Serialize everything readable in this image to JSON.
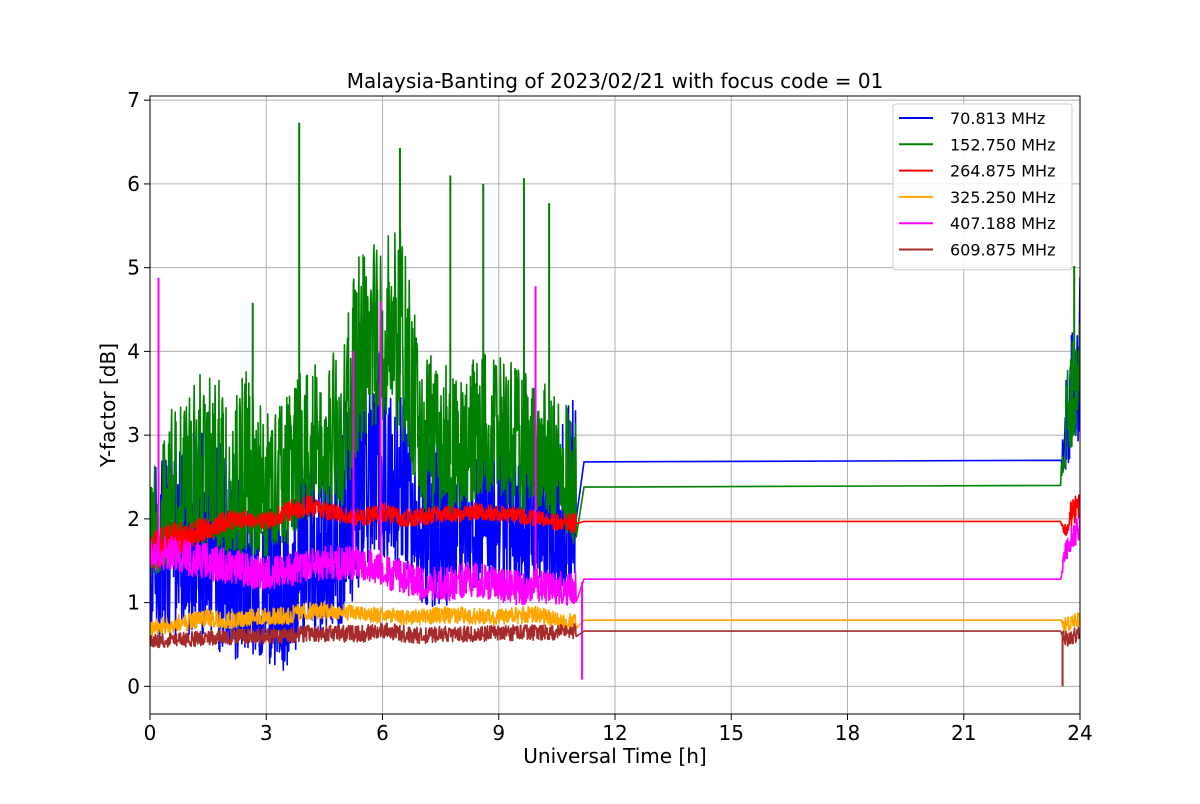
{
  "chart_data": {
    "type": "line",
    "title": "Malaysia-Banting of 2023/02/21 with focus code = 01",
    "xlabel": "Universal Time [h]",
    "ylabel": "Y-factor [dB]",
    "xlim": [
      0,
      24
    ],
    "ylim": [
      -0.33,
      7.05
    ],
    "xticks": [
      0,
      3,
      6,
      9,
      12,
      15,
      18,
      21,
      24
    ],
    "yticks": [
      0,
      1,
      2,
      3,
      4,
      5,
      6,
      7
    ],
    "grid": true,
    "legend_position": "top-right",
    "series": [
      {
        "name": " 70.813 MHz",
        "color": "#0000ff",
        "x": [
          0,
          0.5,
          1,
          1.5,
          2,
          2.5,
          3,
          3.5,
          4,
          4.5,
          5,
          5.5,
          6,
          6.5,
          7,
          7.5,
          8,
          8.5,
          9,
          9.5,
          10,
          10.5,
          11,
          11.2,
          23.5,
          23.6,
          23.8,
          24
        ],
        "y": [
          1.5,
          1.6,
          1.2,
          1.8,
          1.0,
          1.2,
          1.0,
          0.8,
          1.3,
          1.4,
          1.6,
          2.6,
          2.9,
          2.4,
          1.7,
          1.6,
          1.8,
          1.9,
          1.9,
          1.7,
          1.8,
          1.6,
          1.7,
          2.68,
          2.7,
          2.7,
          3.3,
          3.6
        ],
        "envelope_low": [
          0.4,
          0.3,
          0.5,
          0.4,
          0.2,
          0.3,
          0.2,
          0.05,
          0.6,
          0.5,
          0.6,
          1.2,
          1.4,
          1.2,
          0.9,
          0.8,
          1.0,
          1.1,
          1.1,
          1.0,
          1.1,
          1.0,
          1.1,
          2.68,
          2.7,
          2.4,
          2.6,
          2.8
        ],
        "envelope_high": [
          2.5,
          2.9,
          3.0,
          3.5,
          2.6,
          2.7,
          2.3,
          2.2,
          2.9,
          3.0,
          3.4,
          3.9,
          4.0,
          3.6,
          2.8,
          3.2,
          2.9,
          3.1,
          3.0,
          2.8,
          3.0,
          2.9,
          3.8,
          2.68,
          2.7,
          3.6,
          4.3,
          4.9
        ]
      },
      {
        "name": "152.750 MHz",
        "color": "#008000",
        "x": [
          0,
          0.5,
          1,
          1.5,
          2,
          2.5,
          3,
          3.5,
          4,
          4.5,
          5,
          5.5,
          6,
          6.5,
          7,
          7.5,
          8,
          8.5,
          9,
          9.5,
          10,
          10.5,
          11,
          11.2,
          23.5,
          23.6,
          23.8,
          24
        ],
        "y": [
          1.6,
          2.1,
          2.2,
          2.3,
          2.0,
          1.9,
          2.0,
          2.2,
          2.6,
          2.5,
          2.8,
          3.7,
          4.0,
          3.7,
          2.8,
          2.6,
          2.7,
          2.9,
          2.9,
          2.6,
          2.6,
          2.5,
          2.2,
          2.38,
          2.4,
          2.9,
          3.4,
          3.9
        ],
        "envelope_low": [
          1.2,
          1.4,
          1.5,
          1.6,
          1.5,
          1.4,
          1.5,
          1.6,
          1.9,
          1.9,
          2.1,
          2.9,
          3.1,
          2.9,
          2.0,
          1.9,
          2.0,
          2.2,
          2.2,
          2.0,
          2.0,
          1.9,
          1.6,
          2.38,
          2.4,
          2.5,
          2.8,
          3.2
        ],
        "envelope_high": [
          2.5,
          3.3,
          3.5,
          4.0,
          3.4,
          3.8,
          3.3,
          3.5,
          4.0,
          3.9,
          4.1,
          5.6,
          5.4,
          5.5,
          4.0,
          3.9,
          3.7,
          4.0,
          4.0,
          3.8,
          3.7,
          3.5,
          3.3,
          2.38,
          2.4,
          3.6,
          4.4,
          5.0
        ],
        "spikes": [
          {
            "x": 2.65,
            "y": 4.58
          },
          {
            "x": 3.85,
            "y": 6.73
          },
          {
            "x": 6.45,
            "y": 6.43
          },
          {
            "x": 7.75,
            "y": 6.1
          },
          {
            "x": 8.6,
            "y": 6.0
          },
          {
            "x": 9.65,
            "y": 6.07
          },
          {
            "x": 10.3,
            "y": 5.77
          },
          {
            "x": 23.85,
            "y": 5.02
          }
        ]
      },
      {
        "name": "264.875 MHz",
        "color": "#ff0000",
        "x": [
          0,
          0.5,
          1,
          1.5,
          2,
          2.5,
          3,
          3.5,
          4,
          4.5,
          5,
          5.5,
          6,
          6.5,
          7,
          7.5,
          8,
          8.5,
          9,
          9.5,
          10,
          10.5,
          11,
          11.2,
          23.5,
          23.6,
          23.8,
          24
        ],
        "y": [
          1.6,
          1.7,
          1.75,
          1.85,
          1.95,
          2.0,
          1.95,
          2.05,
          2.15,
          2.1,
          2.05,
          2.0,
          2.1,
          2.0,
          2.0,
          2.05,
          2.05,
          2.1,
          2.05,
          2.05,
          2.0,
          1.95,
          1.95,
          1.97,
          1.97,
          1.85,
          2.05,
          2.15
        ],
        "envelope_low": [
          1.3,
          1.5,
          1.6,
          1.75,
          1.85,
          1.88,
          1.85,
          1.95,
          2.02,
          1.98,
          1.93,
          1.9,
          1.95,
          1.9,
          1.9,
          1.95,
          1.95,
          1.98,
          1.95,
          1.93,
          1.9,
          1.85,
          1.82,
          1.97,
          1.97,
          1.75,
          1.9,
          2.0
        ],
        "envelope_high": [
          1.85,
          1.95,
          2.0,
          2.05,
          2.1,
          2.1,
          2.08,
          2.2,
          2.3,
          2.2,
          2.15,
          2.12,
          2.2,
          2.12,
          2.15,
          2.15,
          2.15,
          2.2,
          2.15,
          2.15,
          2.1,
          2.05,
          2.08,
          1.97,
          1.97,
          1.97,
          2.25,
          2.3
        ]
      },
      {
        "name": "325.250 MHz",
        "color": "#ffa500",
        "x": [
          0,
          0.5,
          1,
          1.5,
          2,
          2.5,
          3,
          3.5,
          4,
          4.5,
          5,
          5.5,
          6,
          6.5,
          7,
          7.5,
          8,
          8.5,
          9,
          9.5,
          10,
          10.5,
          11,
          11.2,
          23.5,
          23.6,
          23.8,
          24
        ],
        "y": [
          0.68,
          0.72,
          0.75,
          0.8,
          0.78,
          0.8,
          0.82,
          0.82,
          0.88,
          0.9,
          0.88,
          0.86,
          0.84,
          0.82,
          0.82,
          0.84,
          0.84,
          0.83,
          0.82,
          0.84,
          0.85,
          0.78,
          0.76,
          0.79,
          0.79,
          0.72,
          0.78,
          0.8
        ],
        "envelope_low": [
          0.56,
          0.62,
          0.65,
          0.7,
          0.68,
          0.7,
          0.72,
          0.72,
          0.78,
          0.8,
          0.78,
          0.76,
          0.74,
          0.72,
          0.72,
          0.74,
          0.74,
          0.73,
          0.72,
          0.74,
          0.75,
          0.68,
          0.66,
          0.79,
          0.79,
          0.62,
          0.68,
          0.7
        ],
        "envelope_high": [
          0.8,
          0.84,
          0.87,
          0.95,
          0.9,
          0.92,
          0.94,
          0.95,
          1.0,
          1.0,
          0.98,
          0.96,
          0.95,
          0.92,
          0.92,
          0.95,
          0.95,
          0.93,
          0.92,
          0.95,
          0.96,
          0.88,
          0.87,
          0.79,
          0.79,
          0.82,
          0.88,
          0.9
        ]
      },
      {
        "name": "407.188 MHz",
        "color": "#ff00ff",
        "x": [
          0,
          0.5,
          1,
          1.5,
          2,
          2.5,
          3,
          3.5,
          4,
          4.5,
          5,
          5.5,
          6,
          6.5,
          7,
          7.5,
          8,
          8.5,
          9,
          9.5,
          10,
          10.5,
          11,
          11.2,
          23.5,
          23.6,
          23.8,
          24
        ],
        "y": [
          1.58,
          1.55,
          1.5,
          1.45,
          1.4,
          1.35,
          1.32,
          1.38,
          1.4,
          1.45,
          1.45,
          1.45,
          1.35,
          1.3,
          1.22,
          1.2,
          1.25,
          1.25,
          1.18,
          1.15,
          1.18,
          1.15,
          1.15,
          1.28,
          1.28,
          1.55,
          1.75,
          1.85
        ],
        "envelope_low": [
          1.35,
          1.38,
          1.3,
          1.25,
          1.2,
          1.15,
          1.12,
          1.18,
          1.2,
          1.25,
          1.25,
          1.25,
          1.15,
          1.05,
          1.0,
          0.98,
          1.03,
          1.05,
          0.98,
          0.95,
          0.98,
          0.95,
          0.95,
          1.28,
          1.28,
          1.4,
          1.6,
          1.7
        ],
        "envelope_high": [
          1.8,
          1.8,
          1.75,
          1.7,
          1.65,
          1.6,
          1.55,
          1.6,
          1.62,
          1.7,
          1.68,
          1.7,
          1.58,
          1.55,
          1.45,
          1.45,
          1.48,
          1.48,
          1.42,
          1.38,
          1.4,
          1.38,
          1.38,
          1.28,
          1.28,
          1.7,
          1.95,
          2.05
        ],
        "spikes": [
          {
            "x": 0.22,
            "y": 4.88
          },
          {
            "x": 5.25,
            "y": 4.0
          },
          {
            "x": 5.95,
            "y": 4.6
          },
          {
            "x": 9.95,
            "y": 4.78
          },
          {
            "x": 11.15,
            "y": 0.08
          }
        ]
      },
      {
        "name": "609.875 MHz",
        "color": "#a52a2a",
        "x": [
          0,
          0.5,
          1,
          1.5,
          2,
          2.5,
          3,
          3.5,
          4,
          4.5,
          5,
          5.5,
          6,
          6.5,
          7,
          7.5,
          8,
          8.5,
          9,
          9.5,
          10,
          10.5,
          11,
          11.2,
          23.5,
          23.6,
          23.8,
          24
        ],
        "y": [
          0.53,
          0.55,
          0.55,
          0.58,
          0.58,
          0.6,
          0.6,
          0.6,
          0.62,
          0.62,
          0.62,
          0.62,
          0.65,
          0.62,
          0.6,
          0.62,
          0.62,
          0.62,
          0.63,
          0.64,
          0.64,
          0.64,
          0.66,
          0.66,
          0.66,
          0.55,
          0.6,
          0.6
        ],
        "envelope_low": [
          0.45,
          0.46,
          0.46,
          0.48,
          0.48,
          0.5,
          0.5,
          0.5,
          0.52,
          0.52,
          0.52,
          0.52,
          0.55,
          0.52,
          0.5,
          0.52,
          0.52,
          0.52,
          0.53,
          0.54,
          0.54,
          0.54,
          0.56,
          0.66,
          0.66,
          0.45,
          0.5,
          0.5
        ],
        "envelope_high": [
          0.62,
          0.64,
          0.65,
          0.68,
          0.68,
          0.7,
          0.7,
          0.7,
          0.73,
          0.73,
          0.73,
          0.73,
          0.77,
          0.73,
          0.7,
          0.72,
          0.72,
          0.72,
          0.73,
          0.74,
          0.74,
          0.74,
          0.76,
          0.66,
          0.66,
          0.66,
          0.7,
          0.7
        ],
        "spikes": [
          {
            "x": 23.55,
            "y": 0.0
          }
        ]
      }
    ]
  }
}
